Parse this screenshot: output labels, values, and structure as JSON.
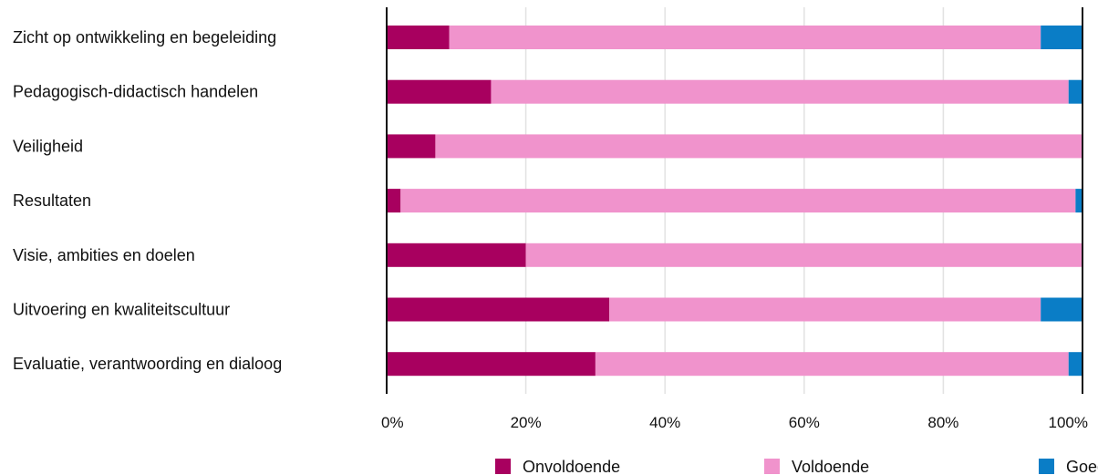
{
  "chart_data": {
    "type": "bar",
    "orientation": "horizontal",
    "stacked": true,
    "categories": [
      "Zicht op ontwikkeling en begeleiding",
      "Pedagogisch-didactisch handelen",
      "Veiligheid",
      "Resultaten",
      "Visie, ambities en doelen",
      "Uitvoering en kwaliteitscultuur",
      "Evaluatie, verantwoording en dialoog"
    ],
    "series": [
      {
        "name": "Onvoldoende",
        "color": "#a8005f",
        "values": [
          9,
          15,
          7,
          2,
          20,
          32,
          30
        ]
      },
      {
        "name": "Voldoende",
        "color": "#f093cc",
        "values": [
          85,
          83,
          93,
          97,
          80,
          62,
          68
        ]
      },
      {
        "name": "Goed",
        "color": "#0a7dc6",
        "values": [
          6,
          2,
          0,
          1,
          0,
          6,
          2
        ]
      }
    ],
    "xlim": [
      0,
      100
    ],
    "xticks": [
      "0%",
      "20%",
      "40%",
      "60%",
      "80%",
      "100%"
    ],
    "xtick_values": [
      0,
      20,
      40,
      60,
      80,
      100
    ],
    "grid": true,
    "legend": "bottom",
    "title": "",
    "xlabel": "",
    "ylabel": ""
  }
}
